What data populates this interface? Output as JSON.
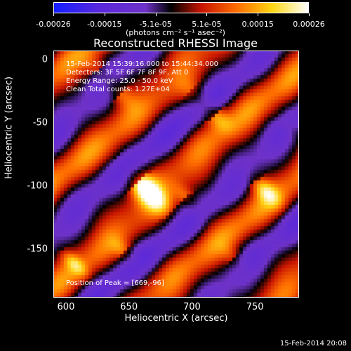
{
  "colorbar": {
    "ticks": [
      "-0.00026",
      "-0.00015",
      "-5.1e-05",
      "5.1e-05",
      "0.00015",
      "0.00026"
    ],
    "units": "(photons cm⁻² s⁻¹ asec⁻²)"
  },
  "title": "Reconstructed RHESSI Image",
  "info": {
    "time": "15-Feb-2014 15:39:16.000 to 15:44:34.000",
    "detectors": "Detectors: 3F 5F 6F 7F 8F 9F, Att 0",
    "energy": "Energy Range: 25.0 - 50.0 keV",
    "clean": "Clean     Total counts: 1.27E+04",
    "peak": "Position of Peak = [669,-96]"
  },
  "footer_timestamp": "15-Feb-2014 20:08",
  "chart_data": {
    "type": "heatmap",
    "title": "Reconstructed RHESSI Image",
    "xlabel": "Heliocentric X (arcsec)",
    "ylabel": "Heliocentric Y (arcsec)",
    "xlim": [
      590,
      785
    ],
    "ylim": [
      -188,
      7
    ],
    "xticks": [
      600,
      650,
      700,
      750
    ],
    "yticks": [
      0,
      -50,
      -100,
      -150
    ],
    "colorbar_range": [
      -0.00026,
      0.00026
    ],
    "colormap": "blue-purple-black-red-yellow-white",
    "peak_position": [
      669,
      -96
    ]
  }
}
